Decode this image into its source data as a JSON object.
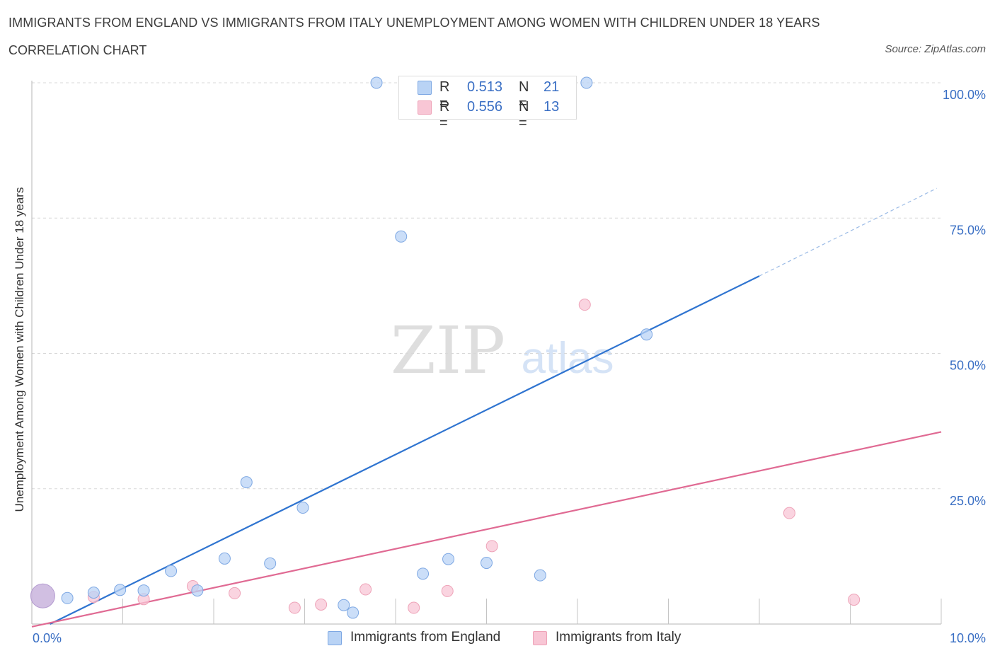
{
  "header": {
    "title": "IMMIGRANTS FROM ENGLAND VS IMMIGRANTS FROM ITALY UNEMPLOYMENT AMONG WOMEN WITH CHILDREN UNDER 18 YEARS",
    "subtitle": "CORRELATION CHART",
    "source": "Source: ZipAtlas.com"
  },
  "watermark": {
    "zip": "ZIP",
    "atlas": "atlas"
  },
  "legend": {
    "england": {
      "r_label": "R =",
      "r_value": "0.513",
      "n_label": "N =",
      "n_value": "21"
    },
    "italy": {
      "r_label": "R =",
      "r_value": "0.556",
      "n_label": "N =",
      "n_value": "13"
    }
  },
  "colors": {
    "england_fill": "#b9d3f5",
    "england_stroke": "#7ea8e3",
    "england_line": "#2f74d0",
    "italy_fill": "#f8c6d5",
    "italy_stroke": "#eea3b8",
    "italy_line": "#e06a93",
    "axis_text": "#3a6fc4",
    "grid": "#d8d8d8"
  },
  "chart_data": {
    "type": "scatter",
    "title": "IMMIGRANTS FROM ENGLAND VS IMMIGRANTS FROM ITALY UNEMPLOYMENT AMONG WOMEN WITH CHILDREN UNDER 18 YEARS",
    "subtitle": "CORRELATION CHART",
    "xlabel": "",
    "ylabel": "Unemployment Among Women with Children Under 18 years",
    "xlim": [
      0,
      10
    ],
    "ylim": [
      0,
      100
    ],
    "x_tick_labels": {
      "min": "0.0%",
      "max": "10.0%"
    },
    "y_ticks": [
      {
        "value": 25,
        "label": "25.0%"
      },
      {
        "value": 50,
        "label": "50.0%"
      },
      {
        "value": 75,
        "label": "75.0%"
      },
      {
        "value": 100,
        "label": "100.0%"
      }
    ],
    "grid": true,
    "legend_position": "top-center",
    "series": [
      {
        "name": "Immigrants from England",
        "r": 0.513,
        "n": 21,
        "points": [
          {
            "x": 0.12,
            "y": 5.2,
            "size": "large"
          },
          {
            "x": 0.39,
            "y": 4.8
          },
          {
            "x": 0.68,
            "y": 5.8
          },
          {
            "x": 0.97,
            "y": 6.3
          },
          {
            "x": 1.23,
            "y": 6.2
          },
          {
            "x": 1.53,
            "y": 9.8
          },
          {
            "x": 1.82,
            "y": 6.2
          },
          {
            "x": 2.12,
            "y": 12.1
          },
          {
            "x": 2.36,
            "y": 26.2
          },
          {
            "x": 2.62,
            "y": 11.2
          },
          {
            "x": 2.98,
            "y": 21.5
          },
          {
            "x": 3.43,
            "y": 3.5
          },
          {
            "x": 3.53,
            "y": 2.1
          },
          {
            "x": 3.79,
            "y": 100.0
          },
          {
            "x": 4.06,
            "y": 71.6
          },
          {
            "x": 4.3,
            "y": 9.3
          },
          {
            "x": 4.58,
            "y": 12.0
          },
          {
            "x": 5.0,
            "y": 11.3
          },
          {
            "x": 5.59,
            "y": 9.0
          },
          {
            "x": 6.1,
            "y": 100.0
          },
          {
            "x": 6.76,
            "y": 53.5
          }
        ],
        "trend": {
          "x0": 0.2,
          "y0": 0.0,
          "x1": 8.0,
          "y1": 64.3,
          "dashed_to_x": 9.95,
          "dashed_to_y": 80.5
        }
      },
      {
        "name": "Immigrants from Italy",
        "r": 0.556,
        "n": 13,
        "points": [
          {
            "x": 0.68,
            "y": 5.0
          },
          {
            "x": 1.23,
            "y": 4.6
          },
          {
            "x": 1.77,
            "y": 7.0
          },
          {
            "x": 2.23,
            "y": 5.7
          },
          {
            "x": 2.89,
            "y": 3.0
          },
          {
            "x": 3.18,
            "y": 3.6
          },
          {
            "x": 3.67,
            "y": 6.4
          },
          {
            "x": 4.2,
            "y": 3.0
          },
          {
            "x": 4.57,
            "y": 6.1
          },
          {
            "x": 5.06,
            "y": 14.4
          },
          {
            "x": 6.08,
            "y": 59.0
          },
          {
            "x": 8.33,
            "y": 20.5
          },
          {
            "x": 9.04,
            "y": 4.5
          }
        ],
        "trend": {
          "x0": 0.0,
          "y0": -0.5,
          "x1": 10.0,
          "y1": 35.5
        }
      }
    ]
  },
  "bottom_legend": {
    "england_label": "Immigrants from England",
    "italy_label": "Immigrants from Italy"
  }
}
